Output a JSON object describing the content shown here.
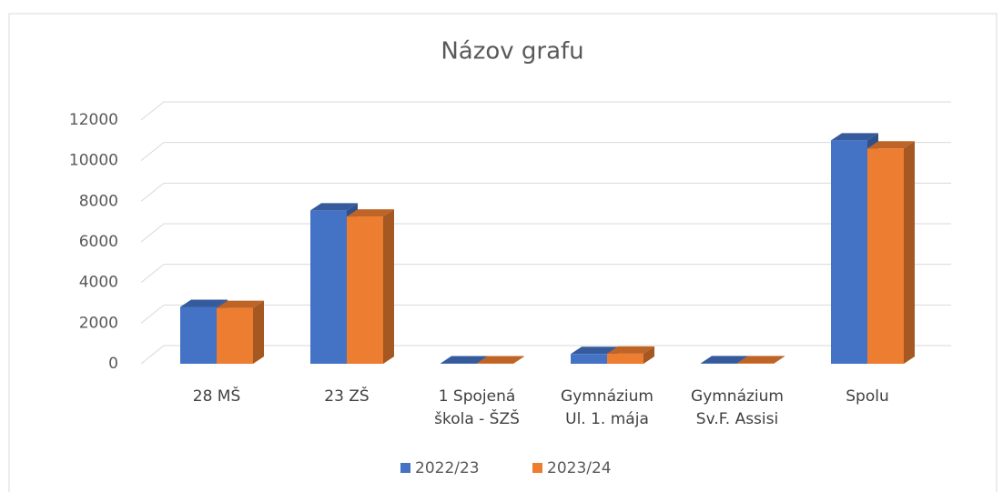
{
  "chart_data": {
    "type": "bar3d",
    "title": "Názov grafu",
    "categories": [
      "28 MŠ",
      "23 ZŠ",
      "1 Spojená škola - ŠZŠ",
      "Gymnázium Ul. 1. mája",
      "Gymnázium Sv.F. Assisi",
      "Spolu"
    ],
    "series": [
      {
        "name": "2022/23",
        "color": "#4472c4",
        "values": [
          2800,
          7550,
          20,
          480,
          30,
          11000
        ]
      },
      {
        "name": "2023/24",
        "color": "#ed7d31",
        "values": [
          2750,
          7250,
          20,
          500,
          30,
          10600
        ]
      }
    ],
    "ylim": [
      0,
      12000
    ],
    "yticks": [
      0,
      2000,
      4000,
      6000,
      8000,
      10000,
      12000
    ],
    "grid": true,
    "legend": "bottom"
  }
}
